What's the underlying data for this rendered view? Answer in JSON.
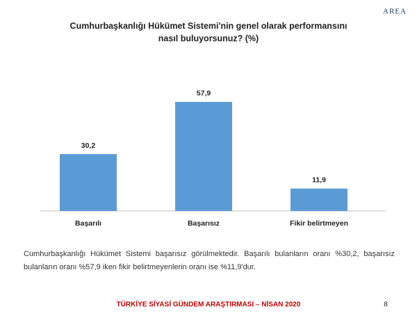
{
  "chart_data": {
    "type": "bar",
    "title": [
      "Cumhurbaşkanlığı Hükümet Sistemi'nin genel olarak performansını",
      "nasıl buluyorsunuz? (%)"
    ],
    "categories": [
      "Başarılı",
      "Başarısız",
      "Fikir belirtmeyen"
    ],
    "values": [
      30.2,
      57.9,
      11.9
    ],
    "value_labels": [
      "30,2",
      "57,9",
      "11,9"
    ],
    "color": "#5b9bd5",
    "ylim": [
      0,
      70
    ]
  },
  "logo": "AREA",
  "note": "Cumhurbaşkanlığı Hükümet Sistemi başarısız görülmektedir. Başarılı bulanların oranı %30,2, başarısız bulanların oranı %57,9 iken fikir belirtmeyenlerin oranı ise %11,9'dur.",
  "footer": "TÜRKİYE SİYASİ GÜNDEM ARAŞTIRMASI – NİSAN 2020",
  "page_number": 8
}
